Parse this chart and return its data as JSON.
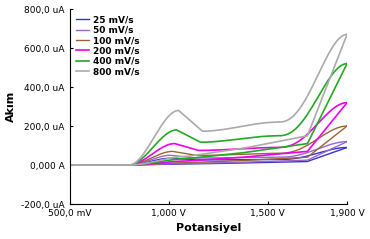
{
  "title": "",
  "xlabel": "Potansiyel",
  "ylabel": "Akım",
  "xlim": [
    0.5,
    1.9
  ],
  "ylim": [
    -0.0002,
    0.0008
  ],
  "yticks": [
    -0.0002,
    0.0,
    0.0002,
    0.0004,
    0.0006,
    0.0008
  ],
  "ytick_labels": [
    "-200,0 uA",
    "0,000 A",
    "200,0 uA",
    "400,0 uA",
    "600,0 uA",
    "800,0 uA"
  ],
  "xticks": [
    0.5,
    1.0,
    1.5,
    1.9
  ],
  "xtick_labels": [
    "500,0 mV",
    "1,000 V",
    "1,500 V",
    "1,900 V"
  ],
  "series": [
    {
      "label": "25 mV/s",
      "color": "#3333cc",
      "linewidth": 1.0
    },
    {
      "label": "50 mV/s",
      "color": "#9966cc",
      "linewidth": 1.0
    },
    {
      "label": "100 mV/s",
      "color": "#996633",
      "linewidth": 1.0
    },
    {
      "label": "200 mV/s",
      "color": "#ee00ee",
      "linewidth": 1.2
    },
    {
      "label": "400 mV/s",
      "color": "#22aa22",
      "linewidth": 1.2
    },
    {
      "label": "800 mV/s",
      "color": "#aaaaaa",
      "linewidth": 1.2
    }
  ],
  "legend_fontsize": 6.5,
  "axis_fontsize": 8,
  "tick_fontsize": 6.5
}
